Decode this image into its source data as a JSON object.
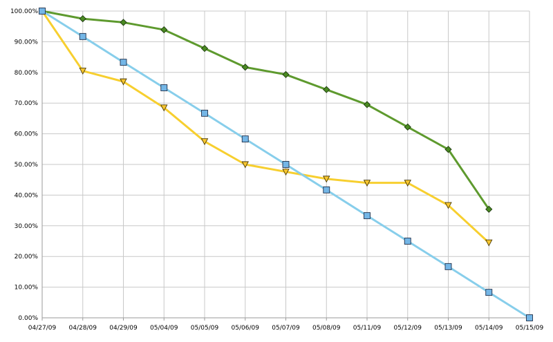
{
  "chart_data": {
    "type": "line",
    "title": "",
    "xlabel": "",
    "ylabel": "",
    "categories": [
      "04/27/09",
      "04/28/09",
      "04/29/09",
      "05/04/09",
      "05/05/09",
      "05/06/09",
      "05/07/09",
      "05/08/09",
      "05/11/09",
      "05/12/09",
      "05/13/09",
      "05/14/09",
      "05/15/09"
    ],
    "ylim": [
      0,
      100
    ],
    "yticks": [
      "0.00%",
      "10.00%",
      "20.00%",
      "30.00%",
      "40.00%",
      "50.00%",
      "60.00%",
      "70.00%",
      "80.00%",
      "90.00%",
      "100.00%"
    ],
    "grid": true,
    "legend": "none",
    "series": [
      {
        "marker": "diamond",
        "color": "#5e9a2e",
        "marker_fill": "#4a8a22",
        "values": [
          100,
          97.5,
          96.3,
          93.9,
          87.8,
          81.7,
          79.3,
          74.4,
          69.5,
          62.2,
          54.9,
          35.4,
          null
        ]
      },
      {
        "marker": "triangle-down",
        "color": "#f7cf2f",
        "marker_fill": "#f7c62f",
        "values": [
          100,
          80.5,
          77.0,
          68.5,
          57.5,
          50.0,
          47.6,
          45.3,
          44.0,
          44.0,
          36.7,
          24.5,
          null
        ]
      },
      {
        "marker": "square",
        "color": "#87ceeb",
        "marker_fill": "#74b6e6",
        "values": [
          100,
          91.7,
          83.3,
          75.0,
          66.7,
          58.3,
          50.0,
          41.7,
          33.3,
          25.0,
          16.7,
          8.3,
          0
        ]
      }
    ]
  }
}
